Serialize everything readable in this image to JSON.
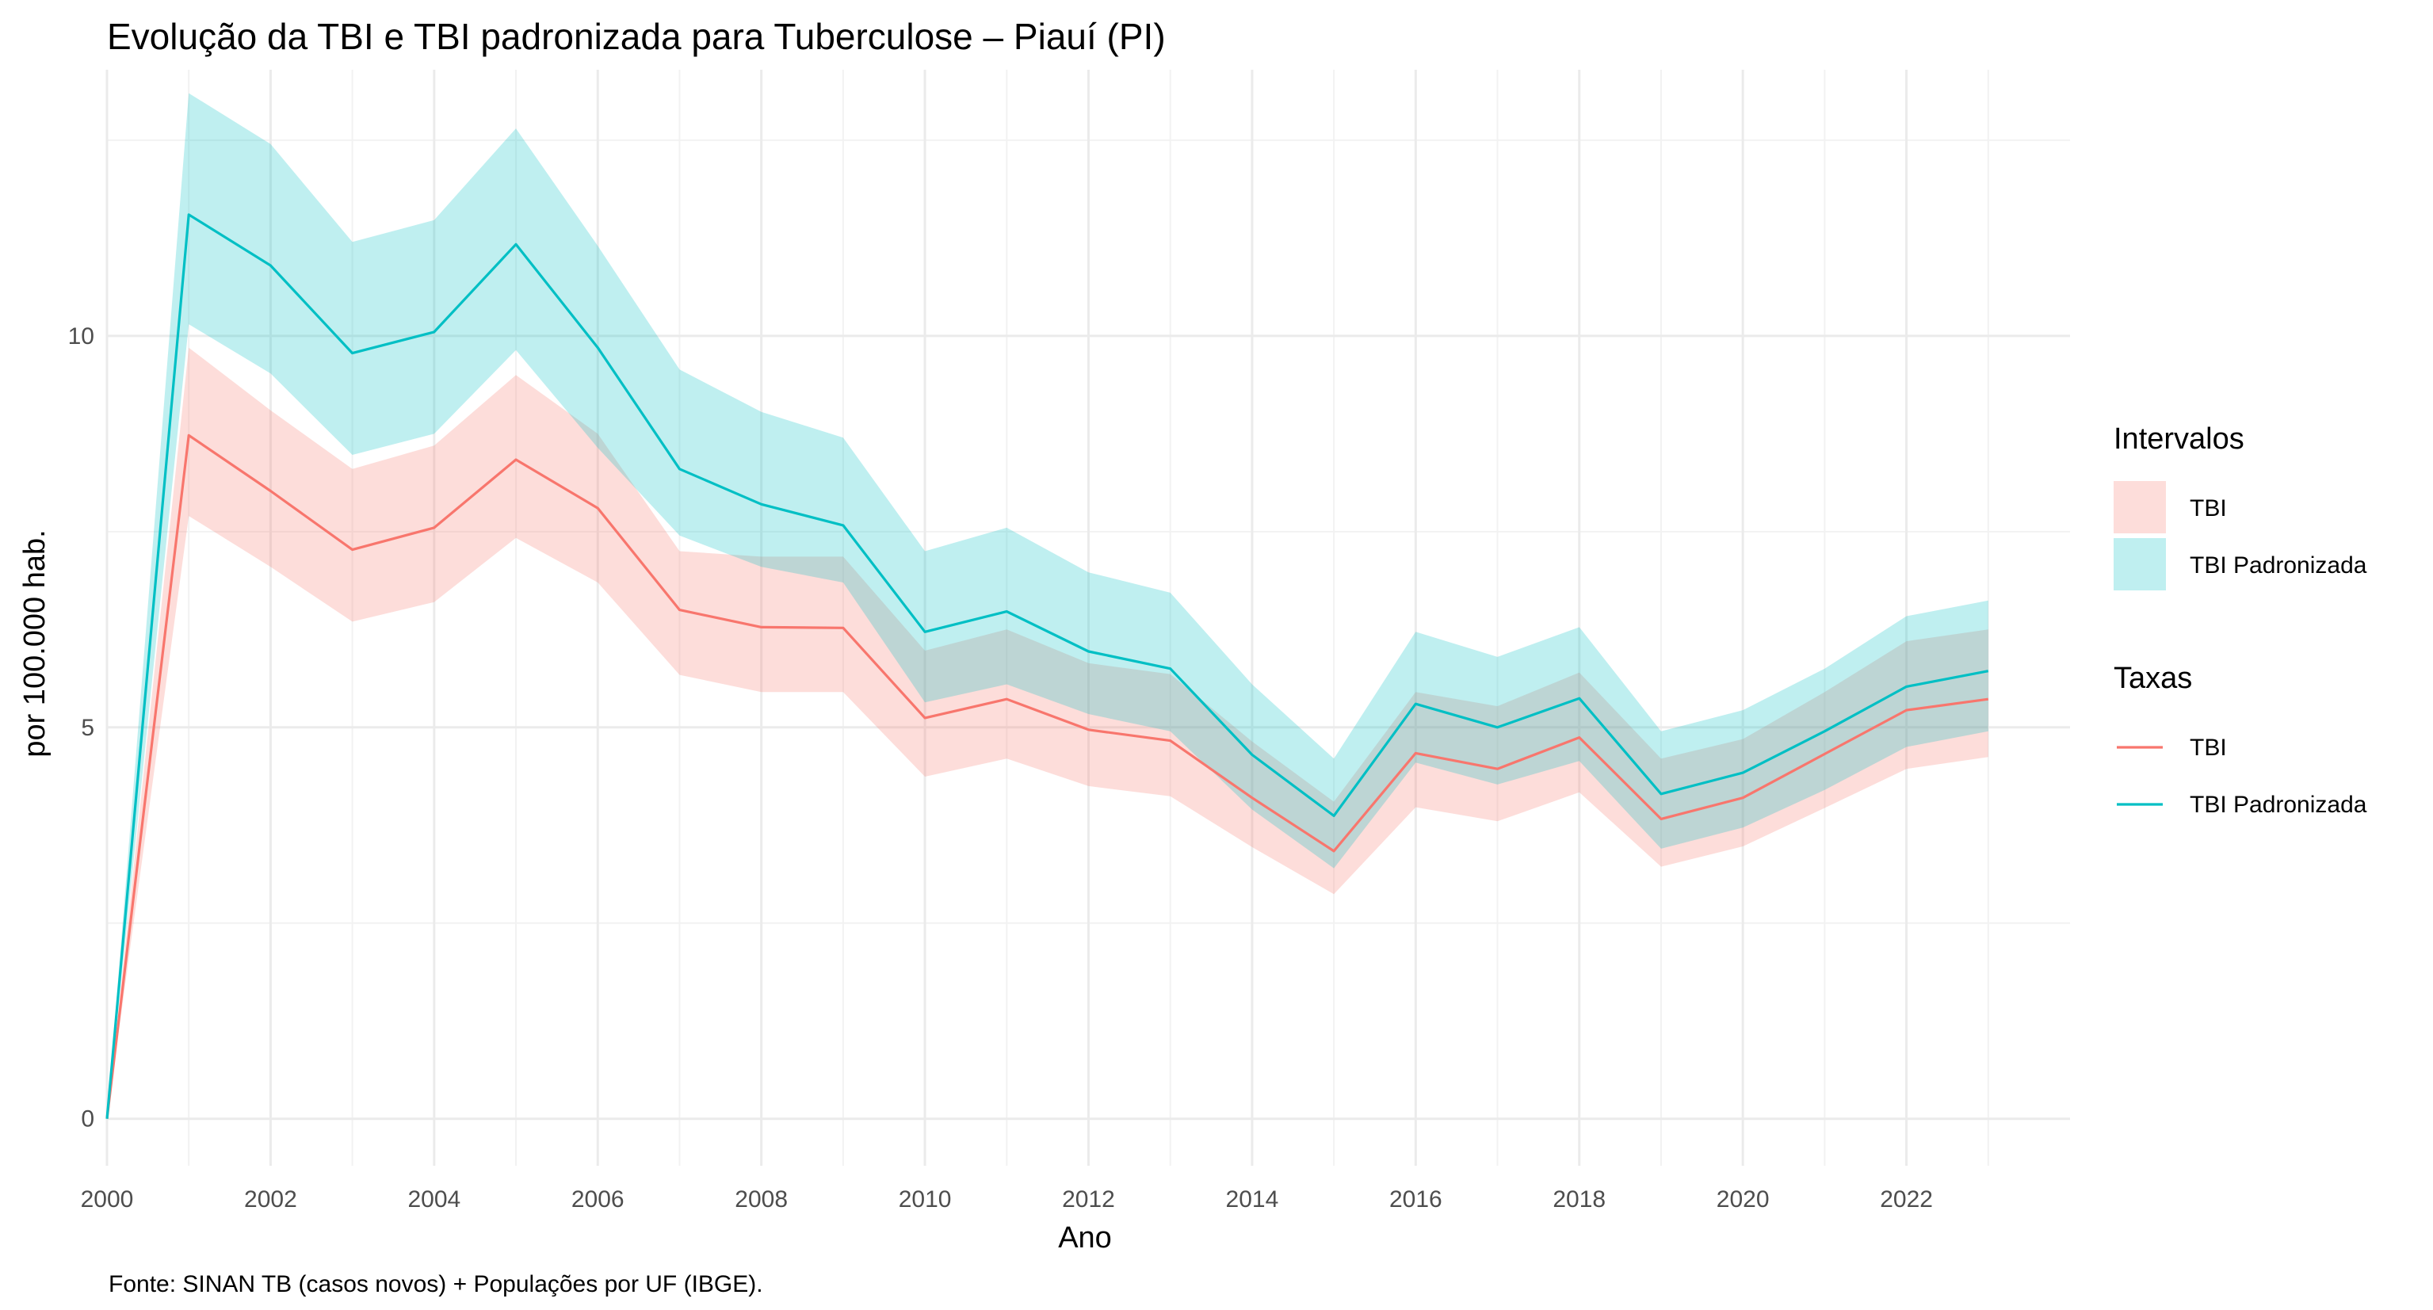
{
  "chart_data": {
    "type": "line",
    "title": "Evolução da TBI e TBI padronizada para Tuberculose – Piauí (PI)",
    "xlabel": "Ano",
    "ylabel": "por 100.000 hab.",
    "caption": "Fonte: SINAN TB (casos novos) + Populações por UF (IBGE).",
    "xlim": [
      2000,
      2024
    ],
    "ylim": [
      -0.6,
      13.4
    ],
    "x_ticks": [
      2000,
      2002,
      2004,
      2006,
      2008,
      2010,
      2012,
      2014,
      2016,
      2018,
      2020,
      2022
    ],
    "x_tick_labels": [
      "2000",
      "2002",
      "2004",
      "2006",
      "2008",
      "2010",
      "2012",
      "2014",
      "2016",
      "2018",
      "2020",
      "2022"
    ],
    "y_ticks": [
      0,
      5,
      10
    ],
    "y_tick_labels": [
      "0",
      "5",
      "10"
    ],
    "grid": true,
    "legend_position": "right",
    "x": [
      2000,
      2001,
      2002,
      2003,
      2004,
      2005,
      2006,
      2007,
      2008,
      2009,
      2010,
      2011,
      2012,
      2013,
      2014,
      2015,
      2016,
      2017,
      2018,
      2019,
      2020,
      2021,
      2022,
      2023
    ],
    "series": [
      {
        "name": "TBI",
        "color": "#F8766D",
        "values": [
          0,
          8.73,
          8.02,
          7.27,
          7.55,
          8.42,
          7.8,
          6.5,
          6.28,
          6.27,
          5.12,
          5.36,
          4.97,
          4.83,
          4.1,
          3.42,
          4.67,
          4.47,
          4.87,
          3.83,
          4.1,
          4.66,
          5.22,
          5.36
        ],
        "lower": [
          0,
          7.7,
          7.05,
          6.35,
          6.6,
          7.42,
          6.85,
          5.67,
          5.45,
          5.45,
          4.37,
          4.6,
          4.25,
          4.12,
          3.47,
          2.87,
          3.98,
          3.8,
          4.17,
          3.22,
          3.48,
          3.97,
          4.47,
          4.62
        ],
        "upper": [
          0,
          9.85,
          9.05,
          8.3,
          8.6,
          9.5,
          8.75,
          7.25,
          7.18,
          7.18,
          5.98,
          6.25,
          5.82,
          5.68,
          4.82,
          4.05,
          5.45,
          5.27,
          5.7,
          4.6,
          4.85,
          5.45,
          6.1,
          6.25
        ]
      },
      {
        "name": "TBI Padronizada",
        "color": "#00BFC4",
        "values": [
          0,
          11.55,
          10.9,
          9.78,
          10.05,
          11.17,
          9.85,
          8.3,
          7.85,
          7.58,
          6.22,
          6.48,
          5.97,
          5.75,
          4.65,
          3.87,
          5.3,
          5.0,
          5.37,
          4.15,
          4.42,
          4.95,
          5.52,
          5.72
        ],
        "lower": [
          0,
          10.15,
          9.52,
          8.48,
          8.75,
          9.82,
          8.57,
          7.45,
          7.05,
          6.85,
          5.32,
          5.55,
          5.17,
          4.95,
          3.95,
          3.2,
          4.55,
          4.27,
          4.57,
          3.45,
          3.72,
          4.2,
          4.75,
          4.95
        ],
        "upper": [
          0,
          13.1,
          12.45,
          11.2,
          11.48,
          12.65,
          11.15,
          9.57,
          9.03,
          8.7,
          7.25,
          7.55,
          6.98,
          6.72,
          5.55,
          4.6,
          6.22,
          5.9,
          6.28,
          4.95,
          5.22,
          5.75,
          6.42,
          6.62
        ]
      }
    ],
    "legends": [
      {
        "title": "Intervalos",
        "kind": "ribbon",
        "items": [
          "TBI",
          "TBI Padronizada"
        ]
      },
      {
        "title": "Taxas",
        "kind": "line",
        "items": [
          "TBI",
          "TBI Padronizada"
        ]
      }
    ]
  }
}
